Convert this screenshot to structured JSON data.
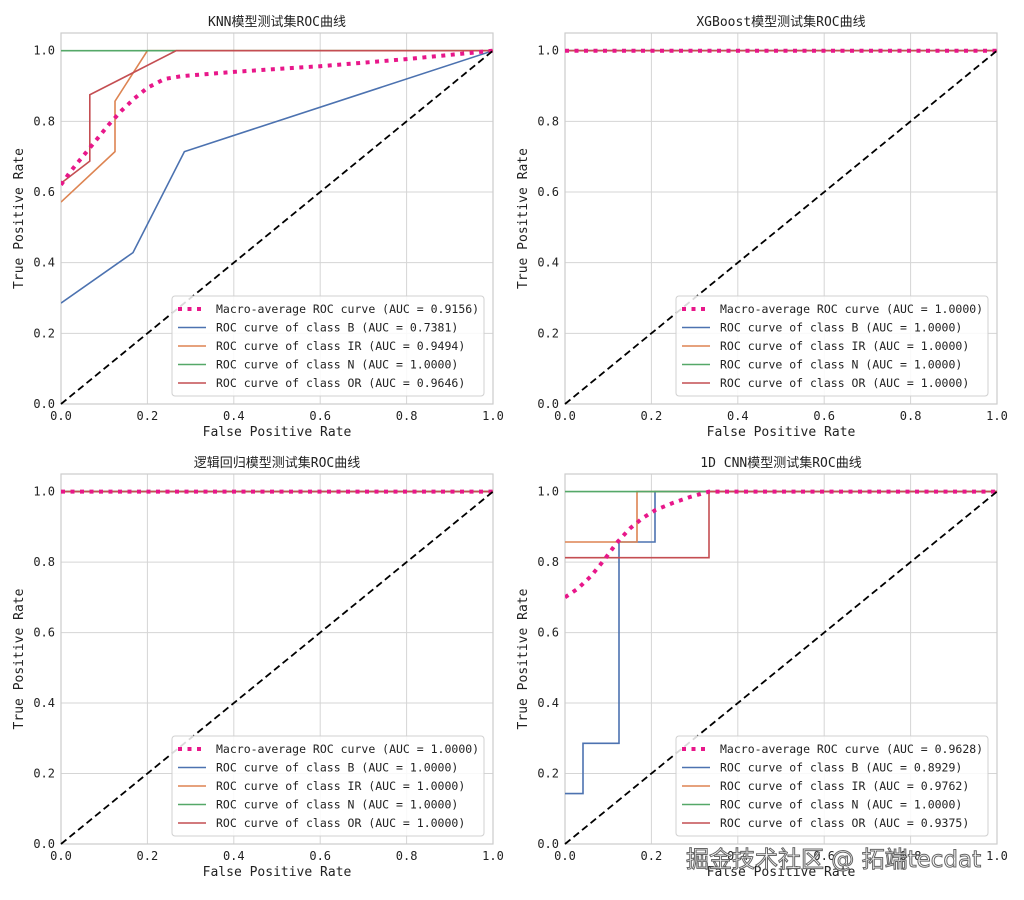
{
  "chart_data": [
    {
      "type": "line",
      "title": "KNN模型测试集ROC曲线",
      "xlabel": "False Positive Rate",
      "ylabel": "True Positive Rate",
      "xlim": [
        0,
        1.0
      ],
      "ylim": [
        0,
        1.05
      ],
      "xticks": [
        "0.0",
        "0.2",
        "0.4",
        "0.6",
        "0.8",
        "1.0"
      ],
      "yticks": [
        "0.0",
        "0.2",
        "0.4",
        "0.6",
        "0.8",
        "1.0"
      ],
      "grid": true,
      "legend_position": "lower-right",
      "series": [
        {
          "name": "Macro-average ROC curve (AUC = 0.9156)",
          "color": "#e8178a",
          "style": "dotted",
          "x": [
            0,
            0.02,
            0.05,
            0.08,
            0.11,
            0.14,
            0.17,
            0.2,
            0.24,
            0.28,
            0.32,
            0.4,
            0.5,
            0.6,
            0.7,
            0.8,
            0.9,
            1.0
          ],
          "y": [
            0.62,
            0.655,
            0.7,
            0.745,
            0.79,
            0.83,
            0.865,
            0.895,
            0.92,
            0.928,
            0.932,
            0.94,
            0.948,
            0.956,
            0.966,
            0.976,
            0.988,
            1.0
          ]
        },
        {
          "name": "ROC curve of class B (AUC = 0.7381)",
          "color": "#4c72b0",
          "style": "solid",
          "x": [
            0,
            0.1667,
            0.2857,
            1.0
          ],
          "y": [
            0.2857,
            0.4286,
            0.7143,
            1.0
          ]
        },
        {
          "name": "ROC curve of class IR (AUC = 0.9494)",
          "color": "#dd8452",
          "style": "solid",
          "x": [
            0,
            0.125,
            0.125,
            0.2,
            1.0
          ],
          "y": [
            0.5714,
            0.7143,
            0.8571,
            1.0,
            1.0
          ]
        },
        {
          "name": "ROC curve of class N (AUC = 1.0000)",
          "color": "#55a868",
          "style": "solid",
          "x": [
            0,
            1.0
          ],
          "y": [
            1.0,
            1.0
          ]
        },
        {
          "name": "ROC curve of class OR (AUC = 0.9646)",
          "color": "#c44e52",
          "style": "solid",
          "x": [
            0,
            0.0667,
            0.0667,
            0.2667,
            1.0
          ],
          "y": [
            0.625,
            0.6875,
            0.875,
            1.0,
            1.0
          ]
        }
      ],
      "diagonal": {
        "x": [
          0,
          1
        ],
        "y": [
          0,
          1
        ],
        "color": "#000000",
        "style": "dashed"
      }
    },
    {
      "type": "line",
      "title": "XGBoost模型测试集ROC曲线",
      "xlabel": "False Positive Rate",
      "ylabel": "True Positive Rate",
      "xlim": [
        0,
        1.0
      ],
      "ylim": [
        0,
        1.05
      ],
      "xticks": [
        "0.0",
        "0.2",
        "0.4",
        "0.6",
        "0.8",
        "1.0"
      ],
      "yticks": [
        "0.0",
        "0.2",
        "0.4",
        "0.6",
        "0.8",
        "1.0"
      ],
      "grid": true,
      "legend_position": "lower-right",
      "series": [
        {
          "name": "Macro-average ROC curve (AUC = 1.0000)",
          "color": "#e8178a",
          "style": "dotted",
          "x": [
            0,
            1.0
          ],
          "y": [
            1.0,
            1.0
          ]
        },
        {
          "name": "ROC curve of class B (AUC = 1.0000)",
          "color": "#4c72b0",
          "style": "solid",
          "x": [
            0,
            1.0
          ],
          "y": [
            1.0,
            1.0
          ]
        },
        {
          "name": "ROC curve of class IR (AUC = 1.0000)",
          "color": "#dd8452",
          "style": "solid",
          "x": [
            0,
            1.0
          ],
          "y": [
            1.0,
            1.0
          ]
        },
        {
          "name": "ROC curve of class N (AUC = 1.0000)",
          "color": "#55a868",
          "style": "solid",
          "x": [
            0,
            1.0
          ],
          "y": [
            1.0,
            1.0
          ]
        },
        {
          "name": "ROC curve of class OR (AUC = 1.0000)",
          "color": "#c44e52",
          "style": "solid",
          "x": [
            0,
            1.0
          ],
          "y": [
            1.0,
            1.0
          ]
        }
      ],
      "diagonal": {
        "x": [
          0,
          1
        ],
        "y": [
          0,
          1
        ],
        "color": "#000000",
        "style": "dashed"
      }
    },
    {
      "type": "line",
      "title": "逻辑回归模型测试集ROC曲线",
      "xlabel": "False Positive Rate",
      "ylabel": "True Positive Rate",
      "xlim": [
        0,
        1.0
      ],
      "ylim": [
        0,
        1.05
      ],
      "xticks": [
        "0.0",
        "0.2",
        "0.4",
        "0.6",
        "0.8",
        "1.0"
      ],
      "yticks": [
        "0.0",
        "0.2",
        "0.4",
        "0.6",
        "0.8",
        "1.0"
      ],
      "grid": true,
      "legend_position": "lower-right",
      "series": [
        {
          "name": "Macro-average ROC curve (AUC = 1.0000)",
          "color": "#e8178a",
          "style": "dotted",
          "x": [
            0,
            1.0
          ],
          "y": [
            1.0,
            1.0
          ]
        },
        {
          "name": "ROC curve of class B (AUC = 1.0000)",
          "color": "#4c72b0",
          "style": "solid",
          "x": [
            0,
            1.0
          ],
          "y": [
            1.0,
            1.0
          ]
        },
        {
          "name": "ROC curve of class IR (AUC = 1.0000)",
          "color": "#dd8452",
          "style": "solid",
          "x": [
            0,
            1.0
          ],
          "y": [
            1.0,
            1.0
          ]
        },
        {
          "name": "ROC curve of class N (AUC = 1.0000)",
          "color": "#55a868",
          "style": "solid",
          "x": [
            0,
            1.0
          ],
          "y": [
            1.0,
            1.0
          ]
        },
        {
          "name": "ROC curve of class OR (AUC = 1.0000)",
          "color": "#c44e52",
          "style": "solid",
          "x": [
            0,
            1.0
          ],
          "y": [
            1.0,
            1.0
          ]
        }
      ],
      "diagonal": {
        "x": [
          0,
          1
        ],
        "y": [
          0,
          1
        ],
        "color": "#000000",
        "style": "dashed"
      }
    },
    {
      "type": "line",
      "title": "1D CNN模型测试集ROC曲线",
      "xlabel": "False Positive Rate",
      "ylabel": "True Positive Rate",
      "xlim": [
        0,
        1.0
      ],
      "ylim": [
        0,
        1.05
      ],
      "xticks": [
        "0.0",
        "0.2",
        "0.4",
        "0.6",
        "0.8",
        "1.0"
      ],
      "yticks": [
        "0.0",
        "0.2",
        "0.4",
        "0.6",
        "0.8",
        "1.0"
      ],
      "grid": true,
      "legend_position": "lower-right",
      "series": [
        {
          "name": "Macro-average ROC curve (AUC = 0.9628)",
          "color": "#e8178a",
          "style": "dotted",
          "x": [
            0,
            0.03,
            0.06,
            0.09,
            0.12,
            0.15,
            0.18,
            0.21,
            0.25,
            0.29,
            0.333,
            0.5,
            0.75,
            1.0
          ],
          "y": [
            0.7,
            0.725,
            0.76,
            0.805,
            0.855,
            0.895,
            0.925,
            0.948,
            0.968,
            0.985,
            1.0,
            1.0,
            1.0,
            1.0
          ]
        },
        {
          "name": "ROC curve of class B (AUC = 0.8929)",
          "color": "#4c72b0",
          "style": "solid",
          "x": [
            0,
            0.0417,
            0.0417,
            0.125,
            0.125,
            0.2083,
            0.2083,
            1.0
          ],
          "y": [
            0.1429,
            0.1429,
            0.2857,
            0.2857,
            0.8571,
            0.8571,
            1.0,
            1.0
          ]
        },
        {
          "name": "ROC curve of class IR (AUC = 0.9762)",
          "color": "#dd8452",
          "style": "solid",
          "x": [
            0,
            0.1667,
            0.1667,
            1.0
          ],
          "y": [
            0.8571,
            0.8571,
            1.0,
            1.0
          ]
        },
        {
          "name": "ROC curve of class N (AUC = 1.0000)",
          "color": "#55a868",
          "style": "solid",
          "x": [
            0,
            1.0
          ],
          "y": [
            1.0,
            1.0
          ]
        },
        {
          "name": "ROC curve of class OR (AUC = 0.9375)",
          "color": "#c44e52",
          "style": "solid",
          "x": [
            0,
            0.3333,
            0.3333,
            1.0
          ],
          "y": [
            0.8125,
            0.8125,
            1.0,
            1.0
          ]
        }
      ],
      "diagonal": {
        "x": [
          0,
          1
        ],
        "y": [
          0,
          1
        ],
        "color": "#000000",
        "style": "dashed"
      }
    }
  ],
  "watermark": "掘金技术社区 @ 拓端tecdat"
}
